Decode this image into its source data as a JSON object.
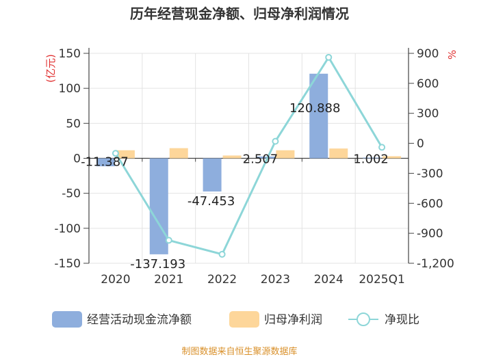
{
  "title": "历年经营现金净额、归母净利润情况",
  "footer": "制图数据来自恒生聚源数据库",
  "legend": {
    "bar1": "经营活动现金流净额",
    "bar2": "归母净利润",
    "line": "净现比"
  },
  "colors": {
    "bar1": "#8eaedd",
    "bar2": "#fdd69a",
    "line": "#8dd6d8",
    "unit": "#e03030",
    "footer": "#d9902a"
  },
  "chart_data": {
    "type": "bar",
    "categories": [
      "2020",
      "2021",
      "2022",
      "2023",
      "2024",
      "2025Q1"
    ],
    "series": [
      {
        "name": "经营活动现金流净额",
        "axis": "left",
        "values": [
          -11.387,
          -137.193,
          -47.453,
          2.507,
          120.888,
          1.002
        ]
      },
      {
        "name": "归母净利润",
        "axis": "left",
        "values": [
          11.5,
          14.5,
          4.0,
          11.5,
          14.0,
          3.0
        ]
      },
      {
        "name": "净现比",
        "type": "line",
        "axis": "right",
        "values": [
          -100,
          -970,
          -1110,
          20,
          860,
          -40
        ]
      }
    ],
    "bar1_labels": [
      "-11.387",
      "-137.193",
      "-47.453",
      "2.507",
      "120.888",
      "1.002"
    ],
    "left_axis": {
      "label": "(亿元)",
      "ylim": [
        -150,
        150
      ],
      "ticks": [
        -150,
        -100,
        -50,
        0,
        50,
        100,
        150
      ],
      "tick_labels": [
        "-150",
        "-100",
        "-50",
        "0",
        "50",
        "100",
        "150"
      ]
    },
    "right_axis": {
      "label": "%",
      "ylim": [
        -1200,
        900
      ],
      "ticks": [
        -1200,
        -900,
        -600,
        -300,
        0,
        300,
        600,
        900
      ],
      "tick_labels": [
        "-1,200",
        "-900",
        "-600",
        "-300",
        "0",
        "300",
        "600",
        "900"
      ]
    }
  }
}
